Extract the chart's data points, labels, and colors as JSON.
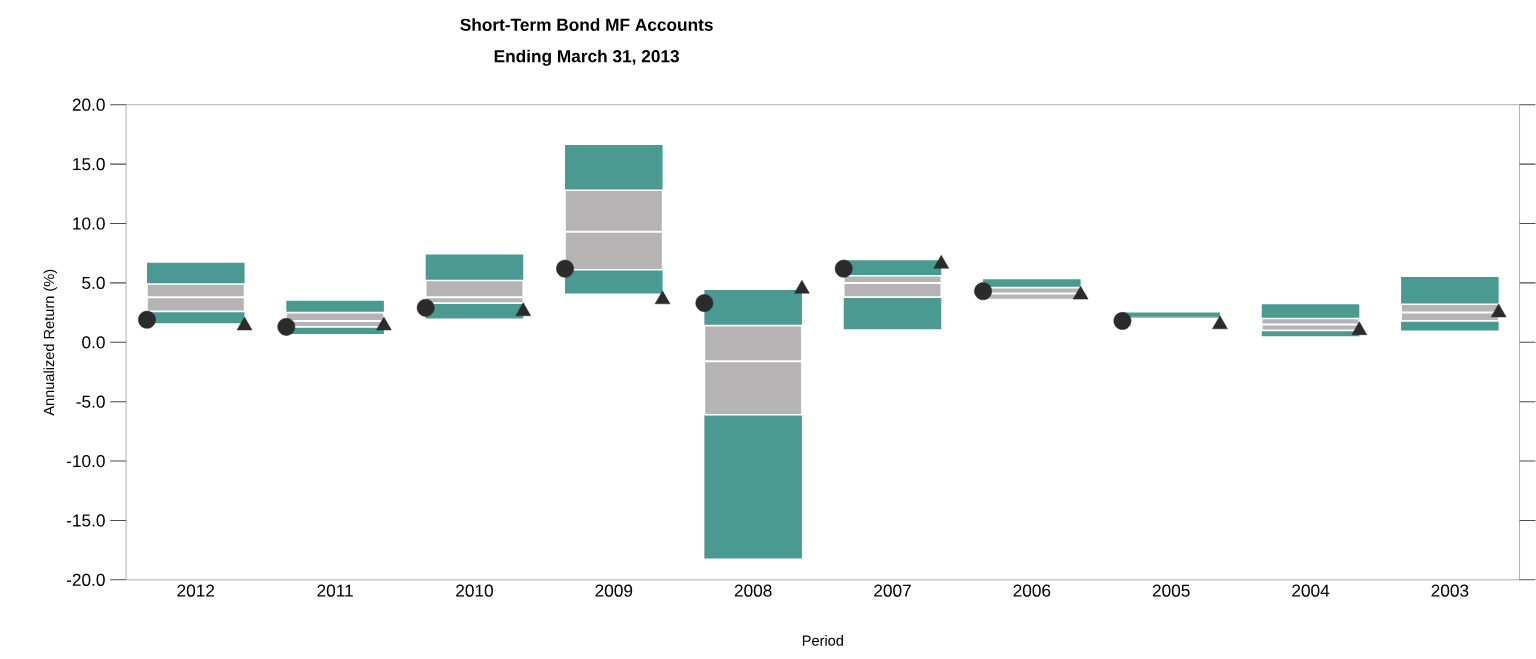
{
  "chart_data": {
    "type": "box",
    "title": "Short-Term Bond MF Accounts",
    "subtitle": "Ending March 31, 2013",
    "xlabel": "Period",
    "ylabel": "Annualized Return (%)",
    "categories": [
      "2012",
      "2011",
      "2010",
      "2009",
      "2008",
      "2007",
      "2006",
      "2005",
      "2004",
      "2003"
    ],
    "color": "#b5b3b3",
    "boxes": [
      {
        "low": 1.6,
        "q1": 2.6,
        "median": 3.8,
        "q3": 4.9,
        "high": 6.7
      },
      {
        "low": 0.7,
        "q1": 1.3,
        "median": 1.8,
        "q3": 2.5,
        "high": 3.5
      },
      {
        "low": 2.0,
        "q1": 3.3,
        "median": 3.8,
        "q3": 5.2,
        "high": 7.4
      },
      {
        "low": 4.1,
        "q1": 6.1,
        "median": 9.3,
        "q3": 12.8,
        "high": 16.6
      },
      {
        "low": -18.2,
        "q1": -6.1,
        "median": -1.6,
        "q3": 1.4,
        "high": 4.4
      },
      {
        "low": 1.1,
        "q1": 3.8,
        "median": 5.0,
        "q3": 5.6,
        "high": 6.9
      },
      {
        "low": 3.6,
        "q1": 3.6,
        "median": 4.1,
        "q3": 4.6,
        "high": 5.3
      },
      {
        "low": 2.1,
        "q1": 2.1,
        "median": 2.1,
        "q3": 2.1,
        "high": 2.5
      },
      {
        "low": 0.5,
        "q1": 1.0,
        "median": 1.5,
        "q3": 2.0,
        "high": 3.2
      },
      {
        "low": 1.0,
        "q1": 1.8,
        "median": 2.5,
        "q3": 3.2,
        "high": 5.5
      }
    ],
    "series": [
      {
        "type": "scatter",
        "marker": "circle",
        "color": "#2b2b2b",
        "values": [
          1.9,
          1.3,
          2.9,
          6.2,
          3.3,
          6.2,
          4.3,
          1.8,
          null,
          null
        ]
      },
      {
        "type": "scatter",
        "marker": "triangle",
        "color": "#2b2b2b",
        "values": [
          1.4,
          1.4,
          2.6,
          3.6,
          4.5,
          6.6,
          4.0,
          1.5,
          1.0,
          2.5
        ]
      }
    ],
    "ylim": [
      -20,
      20
    ],
    "yticks": [
      {
        "value": 20,
        "label": "20.0"
      },
      {
        "value": 15,
        "label": "15.0"
      },
      {
        "value": 10,
        "label": "10.0"
      },
      {
        "value": 5,
        "label": "5.0"
      },
      {
        "value": 0,
        "label": "0.0"
      },
      {
        "value": -5,
        "label": "-5.0"
      },
      {
        "value": -10,
        "label": "-10.0"
      },
      {
        "value": -15,
        "label": "-15.0"
      },
      {
        "value": -20,
        "label": "-20.0"
      }
    ]
  }
}
